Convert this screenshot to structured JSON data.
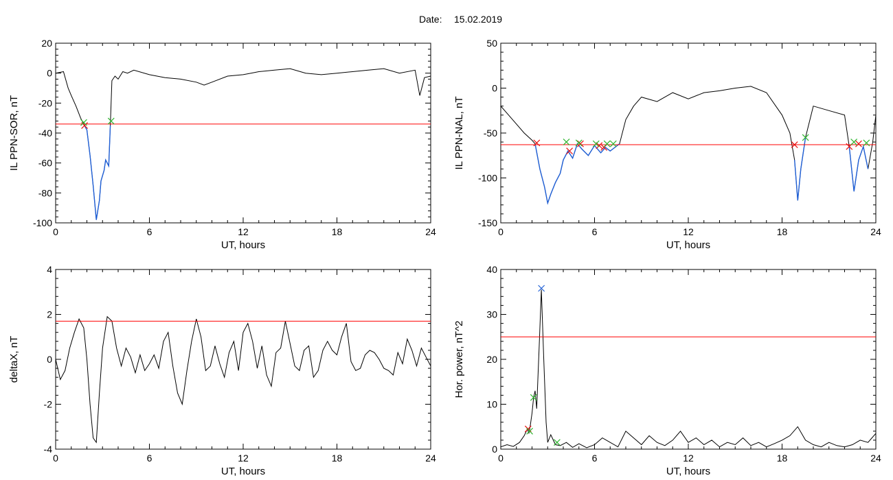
{
  "header": {
    "date_label": "Date:",
    "date_value": "15.02.2019"
  },
  "colors": {
    "trace": "#000000",
    "threshold": "#ff0000",
    "highlight": "#1f5fd6",
    "marker_start": "#e81010",
    "marker_end": "#2fb52f",
    "marker_peak": "#1f5fd6"
  },
  "chart_data": [
    {
      "type": "line",
      "id": "sor",
      "xlabel": "UT, hours",
      "ylabel": "IL PPN-SOR, nT",
      "xlim": [
        0,
        24
      ],
      "ylim": [
        -100,
        20
      ],
      "xticks": [
        0,
        6,
        12,
        18,
        24
      ],
      "yticks": [
        -100,
        -80,
        -60,
        -40,
        -20,
        0,
        20
      ],
      "threshold": -34,
      "series": [
        {
          "role": "trace",
          "x": [
            0,
            0.5,
            0.8,
            1.0,
            1.3,
            1.6,
            1.8,
            2.0,
            2.2,
            2.4,
            2.6,
            2.8,
            2.9,
            3.1,
            3.2,
            3.4,
            3.5,
            3.6,
            3.8,
            4.0,
            4.3,
            4.6,
            5,
            6,
            7,
            8,
            9,
            9.5,
            10,
            11,
            12,
            12.5,
            13,
            14,
            15,
            16,
            17,
            18,
            19,
            20,
            21,
            22,
            23,
            23.3,
            23.6,
            24
          ],
          "y": [
            0,
            1,
            -10,
            -15,
            -22,
            -30,
            -34,
            -38,
            -55,
            -75,
            -98,
            -85,
            -72,
            -65,
            -58,
            -62,
            -35,
            -5,
            -2,
            -4,
            1,
            0,
            2,
            -1,
            -3,
            -4,
            -6,
            -8,
            -6,
            -2,
            -1,
            0,
            1,
            2,
            3,
            0,
            -1,
            0,
            1,
            2,
            3,
            0,
            2,
            -15,
            -3,
            -2
          ]
        },
        {
          "role": "highlight",
          "x": [
            1.8,
            2.0,
            2.2,
            2.4,
            2.6,
            2.8,
            2.9,
            3.1,
            3.2,
            3.4,
            3.5
          ],
          "y": [
            -34,
            -38,
            -55,
            -75,
            -98,
            -85,
            -72,
            -65,
            -58,
            -62,
            -35
          ]
        }
      ],
      "markers": [
        {
          "x": 1.85,
          "y": -35,
          "kind": "start"
        },
        {
          "x": 1.8,
          "y": -33,
          "kind": "end"
        },
        {
          "x": 3.55,
          "y": -32,
          "kind": "end"
        }
      ]
    },
    {
      "type": "line",
      "id": "nal",
      "xlabel": "UT, hours",
      "ylabel": "IL PPN-NAL, nT",
      "xlim": [
        0,
        24
      ],
      "ylim": [
        -150,
        50
      ],
      "xticks": [
        0,
        6,
        12,
        18,
        24
      ],
      "yticks": [
        -150,
        -100,
        -50,
        0,
        50
      ],
      "threshold": -63,
      "series": [
        {
          "role": "trace",
          "x": [
            0,
            0.5,
            1,
            1.5,
            2,
            2.2,
            2.5,
            2.8,
            3.0,
            3.2,
            3.5,
            3.8,
            4.0,
            4.3,
            4.6,
            4.9,
            5.2,
            5.6,
            6.0,
            6.4,
            6.7,
            7.0,
            7.3,
            7.6,
            8,
            8.5,
            9,
            10,
            11,
            12,
            13,
            14,
            15,
            16,
            17,
            18,
            18.5,
            18.8,
            19.0,
            19.2,
            19.5,
            20,
            21,
            22,
            22.3,
            22.6,
            22.9,
            23.2,
            23.5,
            23.8,
            24
          ],
          "y": [
            -20,
            -30,
            -40,
            -50,
            -58,
            -62,
            -90,
            -110,
            -128,
            -118,
            -105,
            -95,
            -80,
            -70,
            -78,
            -62,
            -68,
            -75,
            -64,
            -72,
            -66,
            -70,
            -66,
            -62,
            -35,
            -20,
            -10,
            -15,
            -5,
            -12,
            -5,
            -3,
            0,
            2,
            -5,
            -30,
            -50,
            -80,
            -125,
            -90,
            -55,
            -20,
            -25,
            -30,
            -65,
            -115,
            -80,
            -65,
            -90,
            -60,
            -30
          ]
        },
        {
          "role": "highlight",
          "x": [
            2.2,
            2.5,
            2.8,
            3.0,
            3.2,
            3.5,
            3.8,
            4.0,
            4.3,
            4.6,
            4.9,
            5.2,
            5.6,
            6.0,
            6.4,
            6.7,
            7.0,
            7.3,
            7.6
          ],
          "y": [
            -62,
            -90,
            -110,
            -128,
            -118,
            -105,
            -95,
            -80,
            -70,
            -78,
            -62,
            -68,
            -75,
            -64,
            -72,
            -66,
            -70,
            -66,
            -62
          ]
        },
        {
          "role": "highlight",
          "x": [
            18.8,
            19.0,
            19.2,
            19.5
          ],
          "y": [
            -80,
            -125,
            -90,
            -55
          ]
        },
        {
          "role": "highlight",
          "x": [
            22.3,
            22.6,
            22.9,
            23.2,
            23.5
          ],
          "y": [
            -65,
            -115,
            -80,
            -65,
            -90
          ]
        }
      ],
      "markers": [
        {
          "x": 2.3,
          "y": -61,
          "kind": "start"
        },
        {
          "x": 4.4,
          "y": -70,
          "kind": "start"
        },
        {
          "x": 5.1,
          "y": -62,
          "kind": "start"
        },
        {
          "x": 6.3,
          "y": -64,
          "kind": "start"
        },
        {
          "x": 6.6,
          "y": -66,
          "kind": "start"
        },
        {
          "x": 18.8,
          "y": -63,
          "kind": "start"
        },
        {
          "x": 22.3,
          "y": -65,
          "kind": "start"
        },
        {
          "x": 22.9,
          "y": -62,
          "kind": "start"
        },
        {
          "x": 4.2,
          "y": -60,
          "kind": "end"
        },
        {
          "x": 5.0,
          "y": -61,
          "kind": "end"
        },
        {
          "x": 6.1,
          "y": -62,
          "kind": "end"
        },
        {
          "x": 6.8,
          "y": -62,
          "kind": "end"
        },
        {
          "x": 7.2,
          "y": -62,
          "kind": "end"
        },
        {
          "x": 19.5,
          "y": -55,
          "kind": "end"
        },
        {
          "x": 22.6,
          "y": -60,
          "kind": "end"
        },
        {
          "x": 23.4,
          "y": -61,
          "kind": "end"
        }
      ]
    },
    {
      "type": "line",
      "id": "deltax",
      "xlabel": "UT, hours",
      "ylabel": "deltaX, nT",
      "xlim": [
        0,
        24
      ],
      "ylim": [
        -4,
        4
      ],
      "xticks": [
        0,
        6,
        12,
        18,
        24
      ],
      "yticks": [
        -4,
        -2,
        0,
        2,
        4
      ],
      "threshold": 1.7,
      "series": [
        {
          "role": "trace",
          "x": [
            0,
            0.3,
            0.6,
            0.9,
            1.2,
            1.5,
            1.8,
            2.0,
            2.2,
            2.4,
            2.6,
            2.8,
            3.0,
            3.3,
            3.6,
            3.9,
            4.2,
            4.5,
            4.8,
            5.1,
            5.4,
            5.7,
            6.0,
            6.3,
            6.6,
            6.9,
            7.2,
            7.5,
            7.8,
            8.1,
            8.4,
            8.7,
            9.0,
            9.3,
            9.6,
            9.9,
            10.2,
            10.5,
            10.8,
            11.1,
            11.4,
            11.7,
            12.0,
            12.3,
            12.6,
            12.9,
            13.2,
            13.5,
            13.8,
            14.1,
            14.4,
            14.7,
            15.0,
            15.3,
            15.6,
            15.9,
            16.2,
            16.5,
            16.8,
            17.1,
            17.4,
            17.7,
            18.0,
            18.3,
            18.6,
            18.9,
            19.2,
            19.5,
            19.8,
            20.1,
            20.4,
            20.7,
            21.0,
            21.3,
            21.6,
            21.9,
            22.2,
            22.5,
            22.8,
            23.1,
            23.4,
            23.7,
            24
          ],
          "y": [
            0,
            -0.9,
            -0.5,
            0.5,
            1.2,
            1.8,
            1.4,
            0,
            -2,
            -3.5,
            -3.7,
            -1.5,
            0.5,
            1.9,
            1.7,
            0.5,
            -0.3,
            0.5,
            0.1,
            -0.6,
            0.2,
            -0.5,
            -0.2,
            0.2,
            -0.4,
            0.8,
            1.2,
            -0.3,
            -1.5,
            -2.0,
            -0.5,
            0.8,
            1.8,
            1.0,
            -0.5,
            -0.3,
            0.6,
            -0.2,
            -0.8,
            0.3,
            0.8,
            -0.5,
            1.2,
            1.6,
            0.8,
            -0.4,
            0.6,
            -0.7,
            -1.2,
            0.3,
            0.5,
            1.7,
            0.7,
            -0.3,
            -0.5,
            0.4,
            0.6,
            -0.8,
            -0.5,
            0.4,
            0.8,
            0.4,
            0.2,
            1.0,
            1.6,
            -0.1,
            -0.5,
            -0.4,
            0.2,
            0.4,
            0.3,
            0,
            -0.4,
            -0.5,
            -0.7,
            0.3,
            -0.2,
            0.9,
            0.4,
            -0.3,
            0.5,
            0.1,
            -0.3
          ]
        }
      ],
      "markers": []
    },
    {
      "type": "line",
      "id": "power",
      "xlabel": "UT, hours",
      "ylabel": "Hor. power, nT^2",
      "xlim": [
        0,
        24
      ],
      "ylim": [
        0,
        40
      ],
      "xticks": [
        0,
        6,
        12,
        18,
        24
      ],
      "yticks": [
        0,
        10,
        20,
        30,
        40
      ],
      "threshold": 25,
      "series": [
        {
          "role": "trace",
          "x": [
            0,
            0.4,
            0.8,
            1.2,
            1.5,
            1.7,
            1.8,
            1.9,
            2.0,
            2.1,
            2.2,
            2.3,
            2.45,
            2.6,
            2.75,
            2.9,
            3.0,
            3.2,
            3.5,
            3.8,
            4.2,
            4.6,
            5,
            5.5,
            6,
            6.5,
            7,
            7.5,
            8,
            8.5,
            9,
            9.5,
            10,
            10.5,
            11,
            11.5,
            12,
            12.5,
            13,
            13.5,
            14,
            14.5,
            15,
            15.5,
            16,
            16.5,
            17,
            17.5,
            18,
            18.5,
            19,
            19.5,
            20,
            20.5,
            21,
            21.5,
            22,
            22.5,
            23,
            23.5,
            24
          ],
          "y": [
            0.5,
            1.0,
            0.6,
            1.5,
            3.0,
            4.5,
            3.5,
            5.5,
            8.0,
            11.5,
            13.0,
            9.0,
            22.0,
            35.5,
            20.0,
            6.0,
            1.5,
            3.2,
            1.0,
            0.8,
            1.5,
            0.4,
            1.2,
            0.3,
            1.0,
            2.5,
            1.5,
            0.5,
            4.0,
            2.5,
            1.0,
            3.0,
            1.5,
            0.8,
            2.0,
            4.0,
            1.5,
            2.5,
            1.0,
            2.0,
            0.5,
            1.5,
            1.0,
            2.5,
            0.8,
            1.5,
            0.5,
            1.2,
            2.0,
            3.0,
            5.0,
            2.0,
            1.0,
            0.5,
            1.5,
            0.8,
            0.5,
            1.0,
            2.0,
            1.5,
            3.5
          ]
        }
      ],
      "markers": [
        {
          "x": 1.75,
          "y": 4.5,
          "kind": "start"
        },
        {
          "x": 1.85,
          "y": 4.0,
          "kind": "end"
        },
        {
          "x": 2.1,
          "y": 11.5,
          "kind": "end"
        },
        {
          "x": 2.6,
          "y": 35.8,
          "kind": "peak"
        },
        {
          "x": 3.6,
          "y": 1.5,
          "kind": "end"
        }
      ]
    }
  ]
}
